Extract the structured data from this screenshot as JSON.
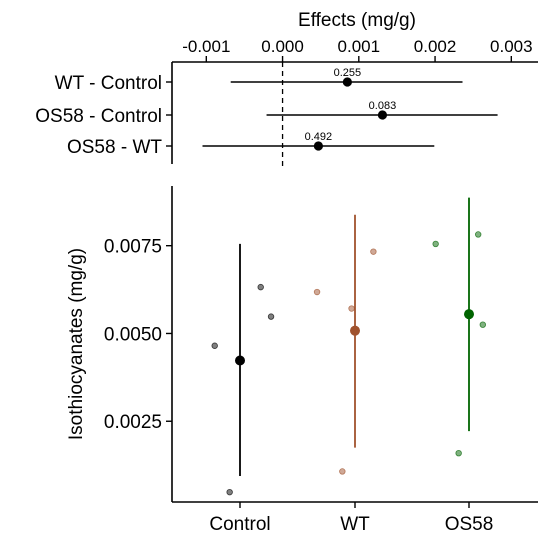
{
  "chart_data": [
    {
      "type": "forest",
      "xlabel": "Effects (mg/g)",
      "xlim": [
        -0.00145,
        0.00335
      ],
      "xticks": [
        -0.001,
        0.0,
        0.001,
        0.002,
        0.003
      ],
      "xtick_labels": [
        "-0.001",
        "0.000",
        "0.001",
        "0.002",
        "0.003"
      ],
      "reference_line": 0.0,
      "rows": [
        {
          "label": "WT - Control",
          "estimate": 0.00085,
          "lower": -0.00068,
          "upper": 0.00236,
          "p_label": "0.255"
        },
        {
          "label": "OS58 - Control",
          "estimate": 0.00131,
          "lower": -0.00021,
          "upper": 0.00282,
          "p_label": "0.083"
        },
        {
          "label": "OS58 - WT",
          "estimate": 0.00047,
          "lower": -0.00105,
          "upper": 0.00199,
          "p_label": "0.492"
        }
      ]
    },
    {
      "type": "scatter",
      "ylabel": "Isothiocyanates (mg/g)",
      "ylim": [
        0.0002,
        0.0092
      ],
      "yticks": [
        0.0025,
        0.005,
        0.0075
      ],
      "ytick_labels": [
        "0.0025",
        "0.0050",
        "0.0075"
      ],
      "categories": [
        "Control",
        "WT",
        "OS58"
      ],
      "series": [
        {
          "category": "Control",
          "color": "#000000",
          "mean": 0.00423,
          "lower": 0.00094,
          "upper": 0.00755,
          "points": [
            {
              "dx": -0.22,
              "y": 0.00465
            },
            {
              "dx": 0.18,
              "y": 0.00632
            },
            {
              "dx": 0.27,
              "y": 0.00548
            },
            {
              "dx": -0.09,
              "y": 0.00048
            }
          ]
        },
        {
          "category": "WT",
          "color": "#A0522D",
          "mean": 0.00508,
          "lower": 0.00175,
          "upper": 0.00838,
          "points": [
            {
              "dx": -0.33,
              "y": 0.00618
            },
            {
              "dx": -0.03,
              "y": 0.00571
            },
            {
              "dx": 0.16,
              "y": 0.00733
            },
            {
              "dx": -0.11,
              "y": 0.00107
            }
          ]
        },
        {
          "category": "OS58",
          "color": "#006400",
          "mean": 0.00555,
          "lower": 0.00222,
          "upper": 0.00887,
          "points": [
            {
              "dx": -0.29,
              "y": 0.00755
            },
            {
              "dx": 0.08,
              "y": 0.00782
            },
            {
              "dx": 0.12,
              "y": 0.00525
            },
            {
              "dx": -0.09,
              "y": 0.00159
            }
          ]
        }
      ]
    }
  ]
}
